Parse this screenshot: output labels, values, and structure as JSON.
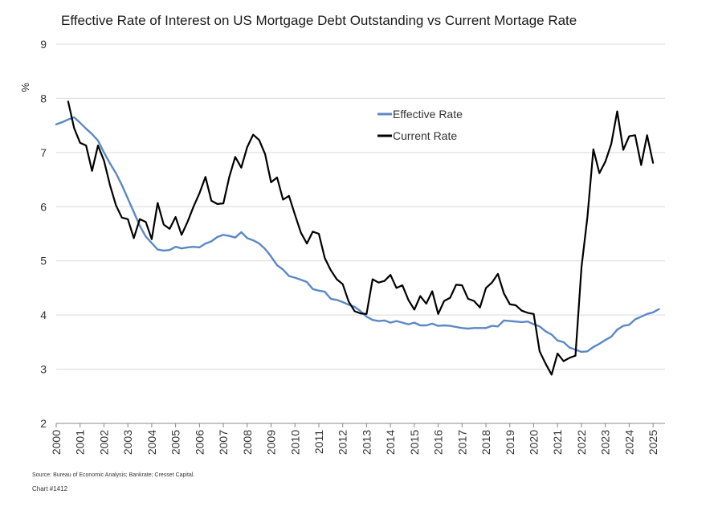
{
  "title": "Effective Rate of Interest on US Mortgage Debt Outstanding vs Current Mortage Rate",
  "source": "Source: Bureau of Economic Analysis; Bankrate; Cresset Capital.",
  "chart_number": "Chart #1412",
  "colors": {
    "effective": "#5b88c5",
    "current": "#000000",
    "grid": "#d9d9d9",
    "axis": "#888888"
  },
  "chart_data": {
    "type": "line",
    "title": "Effective Rate of Interest on US Mortgage Debt Outstanding vs Current Mortage Rate",
    "xlabel": "",
    "ylabel": "%",
    "xlim": [
      2000,
      2025.5
    ],
    "ylim": [
      2,
      9
    ],
    "y_ticks": [
      2,
      3,
      4,
      5,
      6,
      7,
      8,
      9
    ],
    "x_ticks": [
      "2000",
      "2001",
      "2002",
      "2003",
      "2004",
      "2005",
      "2006",
      "2007",
      "2008",
      "2009",
      "2010",
      "2011",
      "2012",
      "2013",
      "2014",
      "2015",
      "2016",
      "2017",
      "2018",
      "2019",
      "2020",
      "2021",
      "2022",
      "2023",
      "2024",
      "2025"
    ],
    "grid": true,
    "legend_position": "top-right",
    "series": [
      {
        "name": "Effective Rate",
        "x": [
          2000.0,
          2000.25,
          2000.5,
          2000.75,
          2001.0,
          2001.25,
          2001.5,
          2001.75,
          2002.0,
          2002.25,
          2002.5,
          2002.75,
          2003.0,
          2003.25,
          2003.5,
          2003.75,
          2004.0,
          2004.25,
          2004.5,
          2004.75,
          2005.0,
          2005.25,
          2005.5,
          2005.75,
          2006.0,
          2006.25,
          2006.5,
          2006.75,
          2007.0,
          2007.25,
          2007.5,
          2007.75,
          2008.0,
          2008.25,
          2008.5,
          2008.75,
          2009.0,
          2009.25,
          2009.5,
          2009.75,
          2010.0,
          2010.25,
          2010.5,
          2010.75,
          2011.0,
          2011.25,
          2011.5,
          2011.75,
          2012.0,
          2012.25,
          2012.5,
          2012.75,
          2013.0,
          2013.25,
          2013.5,
          2013.75,
          2014.0,
          2014.25,
          2014.5,
          2014.75,
          2015.0,
          2015.25,
          2015.5,
          2015.75,
          2016.0,
          2016.25,
          2016.5,
          2016.75,
          2017.0,
          2017.25,
          2017.5,
          2017.75,
          2018.0,
          2018.25,
          2018.5,
          2018.75,
          2019.0,
          2019.25,
          2019.5,
          2019.75,
          2020.0,
          2020.25,
          2020.5,
          2020.75,
          2021.0,
          2021.25,
          2021.5,
          2021.75,
          2022.0,
          2022.25,
          2022.5,
          2022.75,
          2023.0,
          2023.25,
          2023.5,
          2023.75,
          2024.0,
          2024.25,
          2024.5,
          2024.75,
          2025.0,
          2025.25
        ],
        "values": [
          7.52,
          7.56,
          7.61,
          7.65,
          7.55,
          7.44,
          7.34,
          7.22,
          7.0,
          6.8,
          6.62,
          6.4,
          6.15,
          5.9,
          5.65,
          5.45,
          5.33,
          5.21,
          5.19,
          5.2,
          5.26,
          5.23,
          5.25,
          5.26,
          5.25,
          5.32,
          5.36,
          5.44,
          5.48,
          5.46,
          5.43,
          5.53,
          5.42,
          5.38,
          5.32,
          5.22,
          5.08,
          4.92,
          4.84,
          4.72,
          4.69,
          4.65,
          4.61,
          4.48,
          4.45,
          4.43,
          4.3,
          4.28,
          4.24,
          4.19,
          4.15,
          4.07,
          3.97,
          3.91,
          3.89,
          3.9,
          3.86,
          3.89,
          3.86,
          3.83,
          3.86,
          3.81,
          3.81,
          3.84,
          3.8,
          3.81,
          3.8,
          3.78,
          3.76,
          3.75,
          3.76,
          3.76,
          3.76,
          3.8,
          3.79,
          3.9,
          3.89,
          3.88,
          3.87,
          3.88,
          3.83,
          3.79,
          3.7,
          3.64,
          3.53,
          3.5,
          3.4,
          3.36,
          3.32,
          3.33,
          3.41,
          3.47,
          3.54,
          3.6,
          3.73,
          3.8,
          3.82,
          3.92,
          3.97,
          4.02,
          4.05,
          4.11
        ]
      },
      {
        "name": "Current Rate",
        "x": [
          2000.5,
          2000.75,
          2001.0,
          2001.25,
          2001.5,
          2001.75,
          2002.0,
          2002.25,
          2002.5,
          2002.75,
          2003.0,
          2003.25,
          2003.5,
          2003.75,
          2004.0,
          2004.25,
          2004.5,
          2004.75,
          2005.0,
          2005.25,
          2005.5,
          2005.75,
          2006.0,
          2006.25,
          2006.5,
          2006.75,
          2007.0,
          2007.25,
          2007.5,
          2007.75,
          2008.0,
          2008.25,
          2008.5,
          2008.75,
          2009.0,
          2009.25,
          2009.5,
          2009.75,
          2010.0,
          2010.25,
          2010.5,
          2010.75,
          2011.0,
          2011.25,
          2011.5,
          2011.75,
          2012.0,
          2012.25,
          2012.5,
          2012.75,
          2013.0,
          2013.25,
          2013.5,
          2013.75,
          2014.0,
          2014.25,
          2014.5,
          2014.75,
          2015.0,
          2015.25,
          2015.5,
          2015.75,
          2016.0,
          2016.25,
          2016.5,
          2016.75,
          2017.0,
          2017.25,
          2017.5,
          2017.75,
          2018.0,
          2018.25,
          2018.5,
          2018.75,
          2019.0,
          2019.25,
          2019.5,
          2019.75,
          2020.0,
          2020.25,
          2020.5,
          2020.75,
          2021.0,
          2021.25,
          2021.5,
          2021.75,
          2022.0,
          2022.25,
          2022.5,
          2022.75,
          2023.0,
          2023.25,
          2023.5,
          2023.75,
          2024.0,
          2024.25,
          2024.5,
          2024.75,
          2025.0
        ],
        "values": [
          7.94,
          7.45,
          7.18,
          7.13,
          6.66,
          7.13,
          6.85,
          6.4,
          6.03,
          5.8,
          5.77,
          5.42,
          5.77,
          5.72,
          5.4,
          6.07,
          5.67,
          5.59,
          5.81,
          5.48,
          5.72,
          6.0,
          6.25,
          6.55,
          6.11,
          6.05,
          6.06,
          6.55,
          6.92,
          6.72,
          7.1,
          7.33,
          7.23,
          6.97,
          6.45,
          6.54,
          6.13,
          6.2,
          5.85,
          5.52,
          5.32,
          5.54,
          5.5,
          5.05,
          4.83,
          4.66,
          4.57,
          4.25,
          4.07,
          4.03,
          4.02,
          4.66,
          4.6,
          4.63,
          4.74,
          4.5,
          4.55,
          4.28,
          4.1,
          4.35,
          4.21,
          4.44,
          4.02,
          4.26,
          4.32,
          4.56,
          4.55,
          4.3,
          4.26,
          4.14,
          4.5,
          4.6,
          4.76,
          4.4,
          4.2,
          4.18,
          4.08,
          4.04,
          4.02,
          3.33,
          3.1,
          2.9,
          3.29,
          3.15,
          3.21,
          3.25,
          4.88,
          5.81,
          7.06,
          6.62,
          6.83,
          7.16,
          7.76,
          7.05,
          7.3,
          7.32,
          6.77,
          7.32,
          6.81
        ]
      }
    ]
  }
}
